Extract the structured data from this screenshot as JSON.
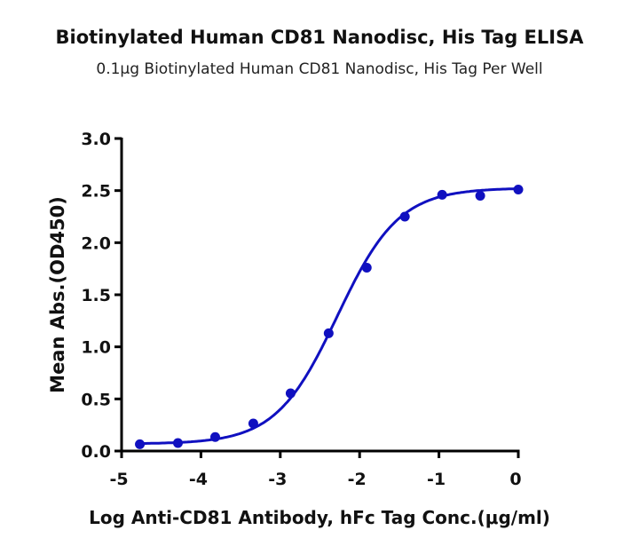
{
  "chart_data": {
    "type": "line",
    "title": "Biotinylated Human CD81 Nanodisc, His Tag ELISA",
    "subtitle": "0.1μg Biotinylated Human CD81 Nanodisc, His Tag Per Well",
    "xlabel": "Log Anti-CD81 Antibody, hFc Tag Conc.(μg/ml)",
    "ylabel": "Mean Abs.(OD450)",
    "xlim": [
      -5,
      0
    ],
    "ylim": [
      0,
      3.0
    ],
    "xticks": [
      "-5",
      "-4",
      "-3",
      "-2",
      "-1",
      "0"
    ],
    "yticks": [
      "0.0",
      "0.5",
      "1.0",
      "1.5",
      "2.0",
      "2.5",
      "3.0"
    ],
    "grid": false,
    "color": "#1010c0",
    "series": [
      {
        "x": [
          -4.77,
          -4.29,
          -3.82,
          -3.34,
          -2.87,
          -2.39,
          -1.91,
          -1.43,
          -0.96,
          -0.48,
          0
        ],
        "y": [
          0.065,
          0.077,
          0.134,
          0.264,
          0.554,
          1.13,
          1.76,
          2.25,
          2.46,
          2.45,
          2.51
        ]
      }
    ]
  }
}
